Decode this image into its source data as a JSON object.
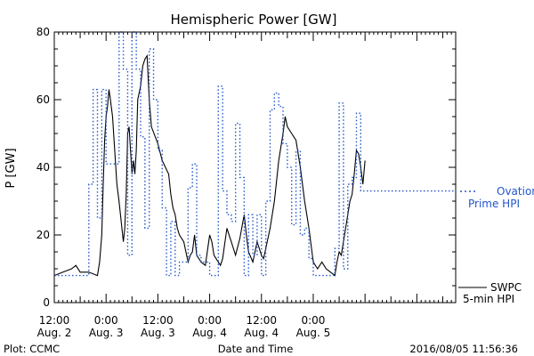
{
  "chart_data": {
    "type": "line",
    "title": "Hemispheric Power [GW]",
    "ylabel": "P [GW]",
    "xlabel": "Date and Time",
    "ylim": [
      0,
      80
    ],
    "xlim": [
      "2016-08-02 12:00",
      "2016-08-06 09:00"
    ],
    "y_ticks": [
      0,
      20,
      40,
      60,
      80
    ],
    "x_ticks": [
      {
        "t": "2016-08-02 12:00",
        "line1": "12:00",
        "line2": "Aug. 2"
      },
      {
        "t": "2016-08-03 00:00",
        "line1": "0:00",
        "line2": "Aug. 3"
      },
      {
        "t": "2016-08-03 12:00",
        "line1": "12:00",
        "line2": "Aug. 3"
      },
      {
        "t": "2016-08-04 00:00",
        "line1": "0:00",
        "line2": "Aug. 4"
      },
      {
        "t": "2016-08-04 12:00",
        "line1": "12:00",
        "line2": "Aug. 4"
      },
      {
        "t": "2016-08-05 00:00",
        "line1": "0:00",
        "line2": "Aug. 5"
      }
    ],
    "series": [
      {
        "name": "SWPC 5-min HPI",
        "style": "solid",
        "color": "#000000",
        "points": [
          [
            "2016-08-02 12:00",
            8
          ],
          [
            "2016-08-02 14:00",
            9
          ],
          [
            "2016-08-02 16:00",
            10
          ],
          [
            "2016-08-02 17:00",
            11
          ],
          [
            "2016-08-02 18:00",
            9
          ],
          [
            "2016-08-02 20:00",
            9
          ],
          [
            "2016-08-02 22:00",
            8
          ],
          [
            "2016-08-02 22:30",
            12
          ],
          [
            "2016-08-02 23:00",
            20
          ],
          [
            "2016-08-02 23:20",
            35
          ],
          [
            "2016-08-02 23:40",
            48
          ],
          [
            "2016-08-03 00:00",
            55
          ],
          [
            "2016-08-03 00:20",
            58
          ],
          [
            "2016-08-03 00:40",
            63
          ],
          [
            "2016-08-03 01:00",
            60
          ],
          [
            "2016-08-03 01:30",
            55
          ],
          [
            "2016-08-03 02:00",
            45
          ],
          [
            "2016-08-03 02:30",
            35
          ],
          [
            "2016-08-03 03:00",
            30
          ],
          [
            "2016-08-03 03:40",
            22
          ],
          [
            "2016-08-03 04:00",
            18
          ],
          [
            "2016-08-03 04:20",
            22
          ],
          [
            "2016-08-03 04:40",
            32
          ],
          [
            "2016-08-03 05:00",
            50
          ],
          [
            "2016-08-03 05:20",
            52
          ],
          [
            "2016-08-03 05:40",
            45
          ],
          [
            "2016-08-03 06:00",
            38
          ],
          [
            "2016-08-03 06:20",
            42
          ],
          [
            "2016-08-03 06:40",
            38
          ],
          [
            "2016-08-03 07:00",
            45
          ],
          [
            "2016-08-03 07:20",
            60
          ],
          [
            "2016-08-03 07:40",
            62
          ],
          [
            "2016-08-03 08:00",
            64
          ],
          [
            "2016-08-03 08:30",
            70
          ],
          [
            "2016-08-03 09:00",
            72
          ],
          [
            "2016-08-03 09:30",
            73
          ],
          [
            "2016-08-03 10:00",
            60
          ],
          [
            "2016-08-03 10:30",
            52
          ],
          [
            "2016-08-03 12:00",
            47
          ],
          [
            "2016-08-03 13:00",
            42
          ],
          [
            "2016-08-03 14:30",
            38
          ],
          [
            "2016-08-03 15:00",
            32
          ],
          [
            "2016-08-03 15:30",
            28
          ],
          [
            "2016-08-03 16:00",
            26
          ],
          [
            "2016-08-03 16:30",
            22
          ],
          [
            "2016-08-03 17:00",
            20
          ],
          [
            "2016-08-03 18:00",
            18
          ],
          [
            "2016-08-03 18:30",
            15
          ],
          [
            "2016-08-03 19:00",
            12
          ],
          [
            "2016-08-03 19:30",
            14
          ],
          [
            "2016-08-03 20:00",
            15
          ],
          [
            "2016-08-03 20:30",
            20
          ],
          [
            "2016-08-03 21:00",
            14
          ],
          [
            "2016-08-03 22:00",
            12
          ],
          [
            "2016-08-03 23:00",
            11
          ],
          [
            "2016-08-04 00:00",
            20
          ],
          [
            "2016-08-04 00:30",
            18
          ],
          [
            "2016-08-04 01:00",
            14
          ],
          [
            "2016-08-04 02:00",
            12
          ],
          [
            "2016-08-04 02:30",
            11
          ],
          [
            "2016-08-04 03:00",
            13
          ],
          [
            "2016-08-04 04:00",
            22
          ],
          [
            "2016-08-04 05:00",
            18
          ],
          [
            "2016-08-04 06:00",
            14
          ],
          [
            "2016-08-04 07:00",
            19
          ],
          [
            "2016-08-04 08:00",
            26
          ],
          [
            "2016-08-04 08:30",
            20
          ],
          [
            "2016-08-04 09:00",
            15
          ],
          [
            "2016-08-04 10:00",
            12
          ],
          [
            "2016-08-04 11:00",
            18
          ],
          [
            "2016-08-04 12:00",
            14
          ],
          [
            "2016-08-04 12:30",
            13
          ],
          [
            "2016-08-04 13:00",
            16
          ],
          [
            "2016-08-04 14:00",
            22
          ],
          [
            "2016-08-04 15:00",
            30
          ],
          [
            "2016-08-04 16:00",
            42
          ],
          [
            "2016-08-04 17:00",
            50
          ],
          [
            "2016-08-04 17:30",
            55
          ],
          [
            "2016-08-04 18:00",
            52
          ],
          [
            "2016-08-04 19:00",
            50
          ],
          [
            "2016-08-04 20:00",
            48
          ],
          [
            "2016-08-04 21:00",
            40
          ],
          [
            "2016-08-04 22:00",
            30
          ],
          [
            "2016-08-04 23:00",
            22
          ],
          [
            "2016-08-05 00:00",
            12
          ],
          [
            "2016-08-05 01:00",
            10
          ],
          [
            "2016-08-05 02:00",
            12
          ],
          [
            "2016-08-05 03:00",
            10
          ],
          [
            "2016-08-05 04:00",
            9
          ],
          [
            "2016-08-05 05:00",
            8
          ],
          [
            "2016-08-05 05:30",
            12
          ],
          [
            "2016-08-05 06:00",
            15
          ],
          [
            "2016-08-05 06:30",
            14
          ],
          [
            "2016-08-05 07:00",
            18
          ],
          [
            "2016-08-05 07:30",
            22
          ],
          [
            "2016-08-05 08:00",
            26
          ],
          [
            "2016-08-05 08:30",
            30
          ],
          [
            "2016-08-05 09:00",
            32
          ],
          [
            "2016-08-05 09:30",
            38
          ],
          [
            "2016-08-05 10:00",
            45
          ],
          [
            "2016-08-05 10:30",
            44
          ],
          [
            "2016-08-05 11:00",
            40
          ],
          [
            "2016-08-05 11:30",
            35
          ],
          [
            "2016-08-05 12:00",
            42
          ]
        ]
      },
      {
        "name": "Ovation Prime HPI",
        "style": "dotted",
        "color": "#2255cc",
        "points": [
          [
            "2016-08-02 12:00",
            8
          ],
          [
            "2016-08-02 18:00",
            8
          ],
          [
            "2016-08-02 20:00",
            35
          ],
          [
            "2016-08-02 21:00",
            63
          ],
          [
            "2016-08-02 22:00",
            25
          ],
          [
            "2016-08-02 23:00",
            63
          ],
          [
            "2016-08-03 00:00",
            41
          ],
          [
            "2016-08-03 01:00",
            41
          ],
          [
            "2016-08-03 02:00",
            41
          ],
          [
            "2016-08-03 03:00",
            80
          ],
          [
            "2016-08-03 04:00",
            69
          ],
          [
            "2016-08-03 05:00",
            14
          ],
          [
            "2016-08-03 06:00",
            80
          ],
          [
            "2016-08-03 07:00",
            69
          ],
          [
            "2016-08-03 08:00",
            49
          ],
          [
            "2016-08-03 09:00",
            22
          ],
          [
            "2016-08-03 10:00",
            75
          ],
          [
            "2016-08-03 11:00",
            60
          ],
          [
            "2016-08-03 12:00",
            45
          ],
          [
            "2016-08-03 13:00",
            28
          ],
          [
            "2016-08-03 14:00",
            8
          ],
          [
            "2016-08-03 15:00",
            24
          ],
          [
            "2016-08-03 16:00",
            8
          ],
          [
            "2016-08-03 17:00",
            12
          ],
          [
            "2016-08-03 18:00",
            12
          ],
          [
            "2016-08-03 19:00",
            34
          ],
          [
            "2016-08-03 20:00",
            41
          ],
          [
            "2016-08-03 21:00",
            14
          ],
          [
            "2016-08-03 22:00",
            12
          ],
          [
            "2016-08-04 00:00",
            8
          ],
          [
            "2016-08-04 01:00",
            8
          ],
          [
            "2016-08-04 02:00",
            64
          ],
          [
            "2016-08-04 03:00",
            33
          ],
          [
            "2016-08-04 04:00",
            26
          ],
          [
            "2016-08-04 05:00",
            24
          ],
          [
            "2016-08-04 06:00",
            53
          ],
          [
            "2016-08-04 07:00",
            37
          ],
          [
            "2016-08-04 08:00",
            8
          ],
          [
            "2016-08-04 09:00",
            26
          ],
          [
            "2016-08-04 10:00",
            14
          ],
          [
            "2016-08-04 11:00",
            26
          ],
          [
            "2016-08-04 12:00",
            8
          ],
          [
            "2016-08-04 13:00",
            30
          ],
          [
            "2016-08-04 14:00",
            57
          ],
          [
            "2016-08-04 15:00",
            62
          ],
          [
            "2016-08-04 16:00",
            58
          ],
          [
            "2016-08-04 17:00",
            47
          ],
          [
            "2016-08-04 18:00",
            40
          ],
          [
            "2016-08-04 19:00",
            23
          ],
          [
            "2016-08-04 20:00",
            45
          ],
          [
            "2016-08-04 21:00",
            20
          ],
          [
            "2016-08-04 22:00",
            22
          ],
          [
            "2016-08-04 23:00",
            13
          ],
          [
            "2016-08-05 00:00",
            8
          ],
          [
            "2016-08-05 01:00",
            8
          ],
          [
            "2016-08-05 02:00",
            8
          ],
          [
            "2016-08-05 03:00",
            8
          ],
          [
            "2016-08-05 04:00",
            8
          ],
          [
            "2016-08-05 05:00",
            16
          ],
          [
            "2016-08-05 06:00",
            59
          ],
          [
            "2016-08-05 07:00",
            10
          ],
          [
            "2016-08-05 08:00",
            35
          ],
          [
            "2016-08-05 09:00",
            37
          ],
          [
            "2016-08-05 10:00",
            56
          ],
          [
            "2016-08-05 11:00",
            33
          ],
          [
            "2016-08-05 12:00",
            33
          ]
        ]
      }
    ],
    "legend": {
      "placement": "right",
      "ovation_line1": "Ovation",
      "ovation_line2": "Prime HPI",
      "swpc_line1": "SWPC",
      "swpc_line2": "5-min HPI"
    }
  },
  "footer": {
    "plot_credit": "Plot: CCMC",
    "axis_label": "Date and Time",
    "timestamp": "2016/08/05 11:56:36"
  }
}
